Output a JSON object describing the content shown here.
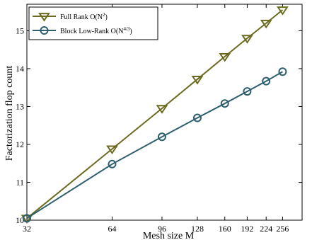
{
  "chart_data": {
    "type": "line",
    "xlabel": "Mesh size M",
    "ylabel": "Factorization flop count",
    "x_scale": "log2",
    "xlim": [
      32,
      300
    ],
    "ylim": [
      10,
      15.7
    ],
    "grid": false,
    "legend_position": "top-left",
    "xticks": [
      32,
      64,
      96,
      128,
      160,
      192,
      224,
      256
    ],
    "xtick_labels": [
      "32",
      "64",
      "96",
      "128",
      "160",
      "192",
      "224",
      "256"
    ],
    "yticks": [
      10,
      11,
      12,
      13,
      14,
      15
    ],
    "ytick_labels": [
      "10",
      "11",
      "12",
      "13",
      "14",
      "15"
    ],
    "x": [
      32,
      64,
      96,
      128,
      160,
      192,
      224,
      256
    ],
    "series": [
      {
        "name": "Full Rank O(N2)",
        "legend_base": "Full Rank O(N",
        "legend_exp": "2",
        "legend_tail": ")",
        "marker": "triangle-down",
        "color": "#6b6b1f",
        "values": [
          10.05,
          11.88,
          12.95,
          13.72,
          14.32,
          14.8,
          15.2,
          15.55
        ]
      },
      {
        "name": "Block Low-Rank O(N4/3)",
        "legend_base": "Block Low-Rank O(N",
        "legend_exp": "4/3",
        "legend_tail": ")",
        "marker": "circle",
        "color": "#2e5f6e",
        "values": [
          10.05,
          11.48,
          12.2,
          12.7,
          13.08,
          13.4,
          13.67,
          13.92
        ]
      }
    ]
  }
}
